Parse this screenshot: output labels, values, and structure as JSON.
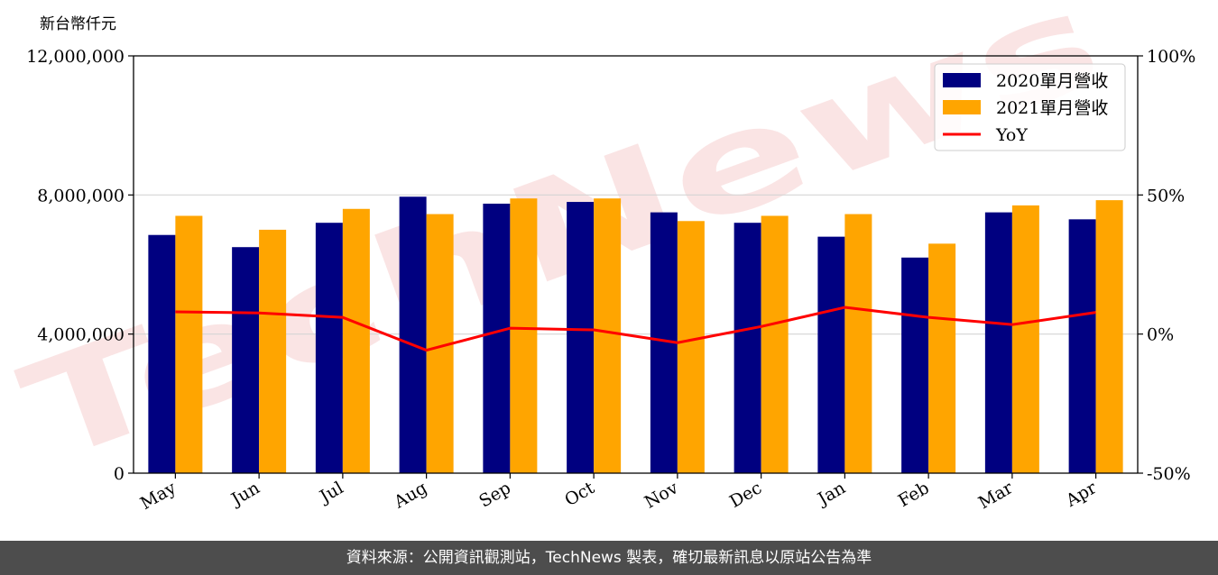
{
  "chart_data": {
    "type": "bar",
    "y_unit_label": "新台幣仟元",
    "categories": [
      "May",
      "Jun",
      "Jul",
      "Aug",
      "Sep",
      "Oct",
      "Nov",
      "Dec",
      "Jan",
      "Feb",
      "Mar",
      "Apr"
    ],
    "series": [
      {
        "name": "2020單月營收",
        "type": "bar",
        "axis": "left",
        "color": "#000080",
        "values": [
          6850000,
          6500000,
          7200000,
          7950000,
          7750000,
          7800000,
          7500000,
          7200000,
          6800000,
          6200000,
          7500000,
          7300000
        ]
      },
      {
        "name": "2021單月營收",
        "type": "bar",
        "axis": "left",
        "color": "#ffa500",
        "values": [
          7400000,
          7000000,
          7600000,
          7450000,
          7900000,
          7900000,
          7250000,
          7400000,
          7450000,
          6600000,
          7700000,
          7850000
        ]
      },
      {
        "name": "YoY",
        "type": "line",
        "axis": "right",
        "color": "#ff0000",
        "values": [
          8.0,
          7.6,
          6.0,
          -5.8,
          2.1,
          1.5,
          -3.1,
          2.7,
          9.6,
          6.0,
          3.4,
          7.8
        ]
      }
    ],
    "ylim": [
      0,
      12000000
    ],
    "y_ticks": [
      "0",
      "4,000,000",
      "8,000,000",
      "12,000,000"
    ],
    "y2lim": [
      -50,
      100
    ],
    "y2_ticks": [
      "-50%",
      "0%",
      "50%",
      "100%"
    ],
    "grid": "horizontal",
    "legend_position": "top-right"
  },
  "watermark": "TechNews",
  "footer": {
    "text": "資料來源：公開資訊觀測站，TechNews 製表，確切最新訊息以原站公告為準"
  }
}
